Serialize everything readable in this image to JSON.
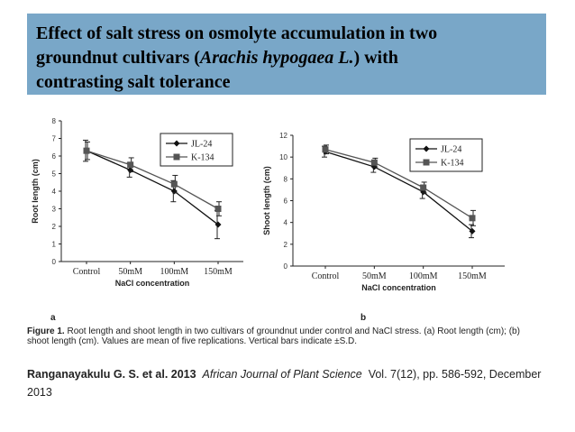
{
  "title": {
    "line1": "Effect of salt stress on osmolyte accumulation in two",
    "line2_pre": "groundnut cultivars (",
    "line2_italic": "Arachis hypogaea L.",
    "line2_post": ") with",
    "line3": "contrasting salt tolerance"
  },
  "chart_data": [
    {
      "type": "line",
      "panel": "a",
      "title": "",
      "xlabel": "NaCl concentration",
      "ylabel": "Root length (cm)",
      "categories": [
        "Control",
        "50mM",
        "100mM",
        "150mM"
      ],
      "ylim": [
        0,
        8
      ],
      "yticks": [
        "0",
        "1",
        "2",
        "3",
        "4",
        "5",
        "6",
        "7",
        "8"
      ],
      "legend_position": "top-right",
      "series": [
        {
          "name": "JL-24",
          "marker": "diamond",
          "values": [
            6.3,
            5.2,
            4.0,
            2.1
          ],
          "errors": [
            0.6,
            0.4,
            0.6,
            0.8
          ]
        },
        {
          "name": "K-134",
          "marker": "square",
          "values": [
            6.3,
            5.5,
            4.4,
            3.0
          ],
          "errors": [
            0.5,
            0.4,
            0.5,
            0.4
          ]
        }
      ]
    },
    {
      "type": "line",
      "panel": "b",
      "title": "",
      "xlabel": "NaCl concentration",
      "ylabel": "Shoot length (cm)",
      "categories": [
        "Control",
        "50mM",
        "100mM",
        "150mM"
      ],
      "ylim": [
        0,
        12
      ],
      "yticks": [
        "0",
        "2",
        "4",
        "6",
        "8",
        "10",
        "12"
      ],
      "legend_position": "top-right",
      "series": [
        {
          "name": "JL-24",
          "marker": "diamond",
          "values": [
            10.5,
            9.1,
            6.8,
            3.2
          ],
          "errors": [
            0.5,
            0.5,
            0.6,
            0.6
          ]
        },
        {
          "name": "K-134",
          "marker": "square",
          "values": [
            10.7,
            9.5,
            7.2,
            4.4
          ],
          "errors": [
            0.4,
            0.4,
            0.5,
            0.7
          ]
        }
      ]
    }
  ],
  "caption": {
    "label": "Figure 1.",
    "text": " Root length and shoot length in two cultivars of groundnut under control and NaCl stress. (a) Root length (cm); (b) shoot length (cm). Values are mean of five replications. Vertical bars indicate ±S.D."
  },
  "citation": {
    "authors": "Ranganayakulu G. S. et al. 2013",
    "journal": "African Journal of Plant Science",
    "details": "Vol. 7(12), pp. 586-592, December 2013"
  }
}
